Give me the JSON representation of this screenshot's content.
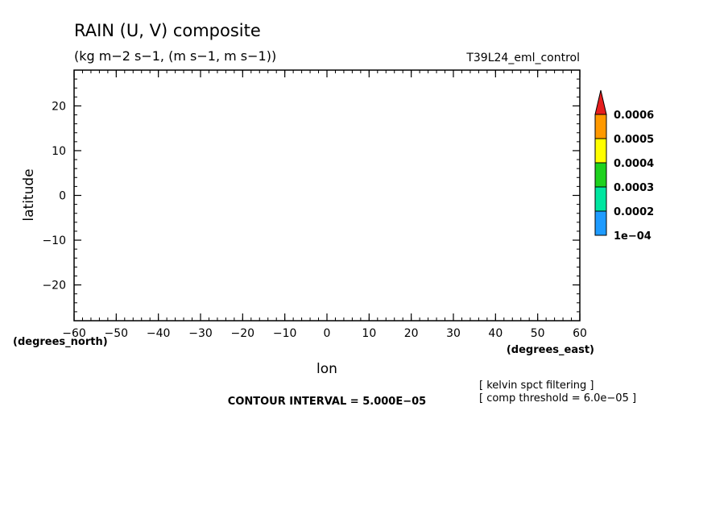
{
  "chart_data": {
    "type": "heatmap",
    "title": "RAIN (U, V) composite",
    "subtitle": "(kg m−2 s−1, (m s−1, m s−1))",
    "dataset_label": "T39L24_eml_control",
    "xlabel": "lon",
    "ylabel": "latitude",
    "x_units": "(degrees_east)",
    "y_units": "(degrees_north)",
    "xlim": [
      -60,
      60
    ],
    "ylim": [
      -28,
      28
    ],
    "x_ticks": [
      -60,
      -50,
      -40,
      -30,
      -20,
      -10,
      0,
      10,
      20,
      30,
      40,
      50,
      60
    ],
    "x_tick_labels": [
      "−60",
      "−50",
      "−40",
      "−30",
      "−20",
      "−10",
      "0",
      "10",
      "20",
      "30",
      "40",
      "50",
      "60"
    ],
    "y_ticks": [
      -20,
      -10,
      0,
      10,
      20
    ],
    "y_tick_labels": [
      "−20",
      "−10",
      "0",
      "10",
      "20"
    ],
    "x_minor_step": 2,
    "y_minor_step": 2,
    "grid": false,
    "contour_interval_text": "CONTOUR INTERVAL = 5.000E−05",
    "notes": [
      "[ kelvin spct filtering ]",
      "[ comp threshold = 6.0e−05 ]"
    ],
    "values": [],
    "colorbar": {
      "position": "right",
      "levels": [
        0.0001,
        0.0002,
        0.0003,
        0.0004,
        0.0005,
        0.0006
      ],
      "level_labels": [
        "1e−04",
        "0.0002",
        "0.0003",
        "0.0004",
        "0.0005",
        "0.0006"
      ],
      "colors": [
        "#1e9bff",
        "#00e6a0",
        "#1ed21e",
        "#ffff00",
        "#ff9900",
        "#e61e1e"
      ]
    }
  }
}
